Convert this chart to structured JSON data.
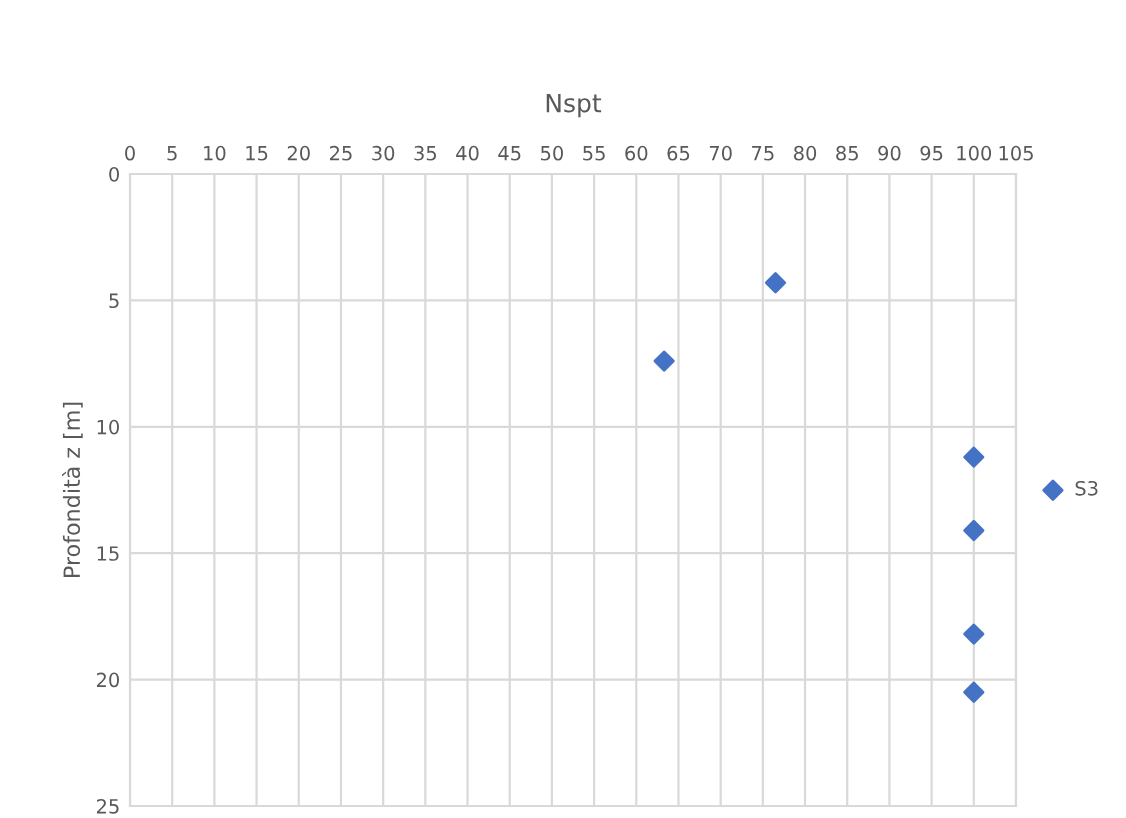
{
  "chart_data": {
    "type": "scatter",
    "xlabel": "Nspt",
    "ylabel": "Profondità z [m]",
    "series": [
      {
        "name": "S3",
        "color": "#4472c4",
        "x": [
          76.5,
          63.3,
          100,
          100,
          100,
          100
        ],
        "values": [
          4.3,
          7.4,
          11.2,
          14.1,
          18.2,
          20.5
        ]
      }
    ],
    "xlim": [
      0,
      105
    ],
    "xticks": [
      0,
      5,
      10,
      15,
      20,
      25,
      30,
      35,
      40,
      45,
      50,
      55,
      60,
      65,
      70,
      75,
      80,
      85,
      90,
      95,
      100,
      105
    ],
    "ylim": [
      25,
      0
    ],
    "yticks": [
      0,
      5,
      10,
      15,
      20,
      25
    ],
    "grid": true,
    "legend": "right",
    "marker": "diamond"
  }
}
